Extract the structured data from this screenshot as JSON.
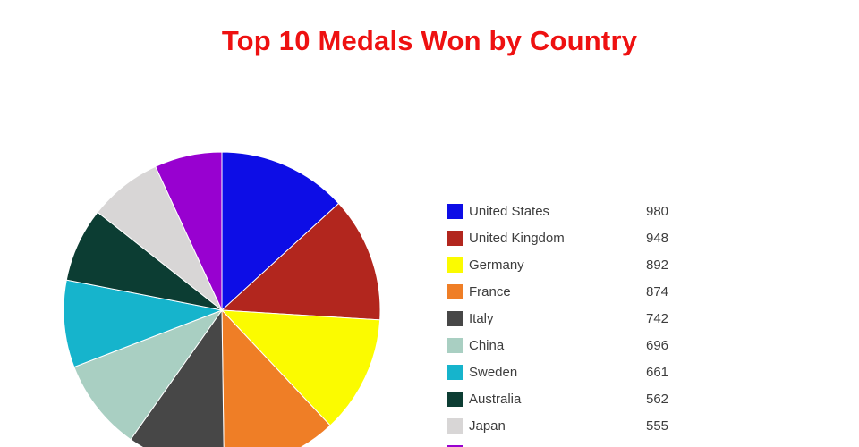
{
  "colors": {
    "title": "#ee1111",
    "legend_text": "#3d3d3d",
    "slice_border": "#ffffff"
  },
  "chart_data": {
    "type": "pie",
    "title": "Top 10 Medals Won by Country",
    "direction": "clockwise",
    "start_angle": "top",
    "legend_position": "right",
    "slices": [
      {
        "label": "United States",
        "value": 980,
        "value_text": "980",
        "color": "#0d0de6"
      },
      {
        "label": "United Kingdom",
        "value": 948,
        "value_text": "948",
        "color": "#b2261e"
      },
      {
        "label": "Germany",
        "value": 892,
        "value_text": "892",
        "color": "#fbfb00"
      },
      {
        "label": "France",
        "value": 874,
        "value_text": "874",
        "color": "#ef7e26"
      },
      {
        "label": "Italy",
        "value": 742,
        "value_text": "742",
        "color": "#474747"
      },
      {
        "label": "China",
        "value": 696,
        "value_text": "696",
        "color": "#a9cfc2"
      },
      {
        "label": "Sweden",
        "value": 661,
        "value_text": "661",
        "color": "#16b4cc"
      },
      {
        "label": "Australia",
        "value": 562,
        "value_text": "562",
        "color": "#0c3d33"
      },
      {
        "label": "Japan",
        "value": 555,
        "value_text": "555",
        "color": "#d8d6d6"
      },
      {
        "label": "",
        "value": 511,
        "value_text": "",
        "color": "#9801d0"
      }
    ]
  }
}
